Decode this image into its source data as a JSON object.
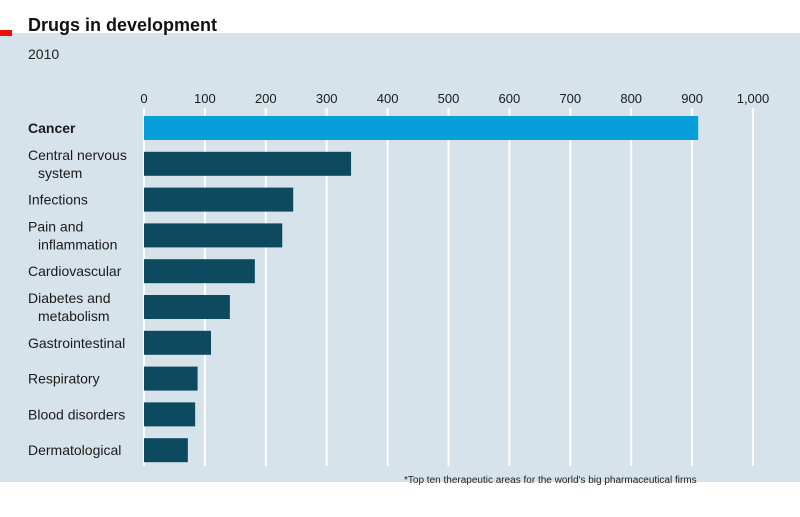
{
  "chart_data": {
    "type": "bar",
    "orientation": "horizontal",
    "title": "Drugs in development",
    "subtitle": "2010",
    "footnote": "*Top ten therapeutic areas for the world's big pharmaceutical firms",
    "categories": [
      "Cancer",
      "Central nervous system",
      "Infections",
      "Pain and inflammation",
      "Cardiovascular",
      "Diabetes and metabolism",
      "Gastrointestinal",
      "Respiratory",
      "Blood disorders",
      "Dermatological"
    ],
    "category_lines": [
      [
        "Cancer"
      ],
      [
        "Central nervous",
        "system"
      ],
      [
        "Infections"
      ],
      [
        "Pain and",
        "inflammation"
      ],
      [
        "Cardiovascular"
      ],
      [
        "Diabetes and",
        "metabolism"
      ],
      [
        "Gastrointestinal"
      ],
      [
        "Respiratory"
      ],
      [
        "Blood disorders"
      ],
      [
        "Dermatological"
      ]
    ],
    "values": [
      910,
      340,
      245,
      227,
      182,
      141,
      110,
      88,
      84,
      72
    ],
    "highlight": "Cancer",
    "xlim": [
      0,
      1000
    ],
    "ticks": [
      0,
      100,
      200,
      300,
      400,
      500,
      600,
      700,
      800,
      900,
      1000
    ],
    "tick_labels": [
      "0",
      "100",
      "200",
      "300",
      "400",
      "500",
      "600",
      "700",
      "800",
      "900",
      "1,000"
    ],
    "axis_position": "top",
    "grid": true,
    "colors": {
      "highlight": "#069fda",
      "bar": "#0d4a5f",
      "grid": "#ffffff",
      "background": "#d7e3ea"
    }
  }
}
